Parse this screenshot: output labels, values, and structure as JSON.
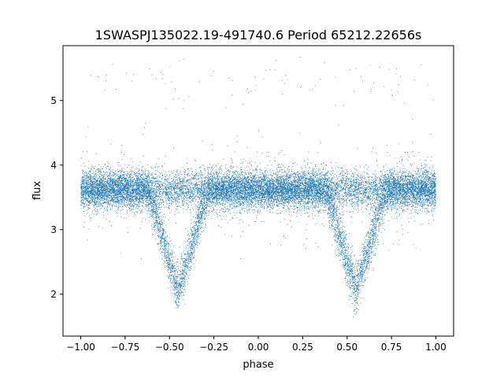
{
  "chart_data": {
    "type": "scatter",
    "title": "1SWASPJ135022.19-491740.6 Period 65212.22656s",
    "xlabel": "phase",
    "ylabel": "flux",
    "xlim": [
      -1.1,
      1.1
    ],
    "ylim": [
      1.35,
      5.85
    ],
    "x_ticks": [
      -1.0,
      -0.75,
      -0.5,
      -0.25,
      0.0,
      0.25,
      0.5,
      0.75,
      1.0
    ],
    "x_tick_labels": [
      "−1.00",
      "−0.75",
      "−0.50",
      "−0.25",
      "0.00",
      "0.25",
      "0.50",
      "0.75",
      "1.00"
    ],
    "y_ticks": [
      2,
      3,
      4,
      5
    ],
    "y_tick_labels": [
      "2",
      "3",
      "4",
      "5"
    ],
    "grid": false,
    "legend": "none",
    "marker_color": "#1f77b4",
    "series": [
      {
        "baseline_flux": 3.62,
        "baseline_scatter": 0.14,
        "points_per_cycle": 9000,
        "eclipse": {
          "center_phases": [
            -0.45,
            0.55
          ],
          "min_flux": 2.05,
          "half_width_phase": 0.17
        },
        "excursions": [
          {
            "phase": -0.68,
            "flux": 5.3
          },
          {
            "phase": 0.32,
            "flux": 5.3
          }
        ],
        "x_range": [
          -1.0,
          1.0
        ]
      }
    ]
  }
}
